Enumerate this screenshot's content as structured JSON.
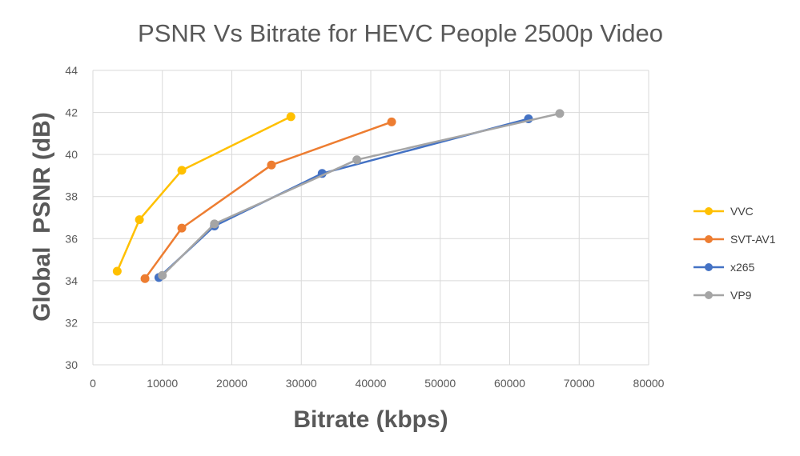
{
  "chart_data": {
    "type": "line",
    "title": "PSNR Vs Bitrate for HEVC People 2500p Video",
    "xlabel": "Bitrate (kbps)",
    "ylabel": "Global  PSNR (dB)",
    "xlim": [
      0,
      80000
    ],
    "ylim": [
      30,
      44
    ],
    "xticks": [
      "0",
      "10000",
      "20000",
      "30000",
      "40000",
      "50000",
      "60000",
      "70000",
      "80000"
    ],
    "yticks": [
      "30",
      "32",
      "34",
      "36",
      "38",
      "40",
      "42",
      "44"
    ],
    "grid": true,
    "legend_position": "right",
    "series": [
      {
        "name": "VVC",
        "color": "#FFC000",
        "points": [
          [
            3500,
            34.45
          ],
          [
            6700,
            36.9
          ],
          [
            12800,
            39.25
          ],
          [
            28500,
            41.8
          ]
        ]
      },
      {
        "name": "SVT-AV1",
        "color": "#ED7D31",
        "points": [
          [
            7500,
            34.1
          ],
          [
            12800,
            36.5
          ],
          [
            25700,
            39.5
          ],
          [
            43000,
            41.55
          ]
        ]
      },
      {
        "name": "x265",
        "color": "#4472C4",
        "points": [
          [
            9500,
            34.15
          ],
          [
            17500,
            36.6
          ],
          [
            33000,
            39.1
          ],
          [
            62700,
            41.7
          ]
        ]
      },
      {
        "name": "VP9",
        "color": "#A5A5A5",
        "points": [
          [
            10000,
            34.25
          ],
          [
            17500,
            36.7
          ],
          [
            38000,
            39.75
          ],
          [
            67200,
            41.95
          ]
        ]
      }
    ]
  }
}
